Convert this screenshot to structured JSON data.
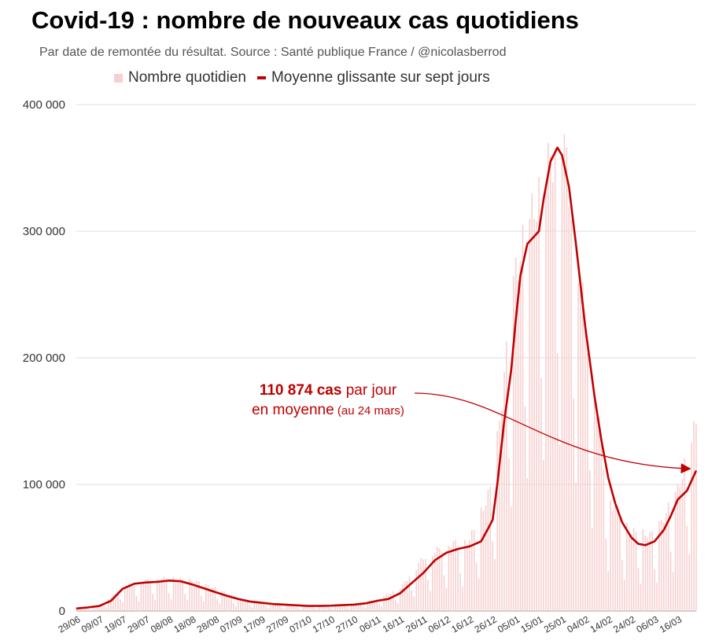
{
  "header": {
    "title": "Covid-19 : nombre de nouveaux cas quotidiens",
    "subtitle": "Par date de remontée du résultat. Source : Santé publique France / @nicolasberrod"
  },
  "legend": {
    "bars_label": "Nombre quotidien",
    "line_label": "Moyenne glissante sur sept jours"
  },
  "annotation": {
    "value": "110 874 cas",
    "line1_rest": " par jour",
    "line2": "en moyenne",
    "note": " (au 24 mars)"
  },
  "colors": {
    "bars": "#f7d0d0",
    "line": "#c00000",
    "grid": "#dddddd",
    "annotation": "#c00000"
  },
  "chart_data": {
    "type": "bar",
    "start_date": "2021-06-29",
    "end_date": "2022-03-24",
    "series": [
      {
        "name": "Nombre quotidien",
        "type": "bar",
        "points": [
          [
            "29/06",
            2000
          ],
          [
            "09/07",
            4000
          ],
          [
            "19/07",
            18000
          ],
          [
            "29/07",
            24000
          ],
          [
            "08/08",
            26000
          ],
          [
            "18/08",
            24000
          ],
          [
            "28/08",
            18000
          ],
          [
            "07/09",
            10000
          ],
          [
            "17/09",
            7000
          ],
          [
            "27/09",
            5000
          ],
          [
            "07/10",
            4000
          ],
          [
            "17/10",
            4500
          ],
          [
            "27/10",
            5500
          ],
          [
            "06/11",
            9000
          ],
          [
            "16/11",
            18000
          ],
          [
            "26/11",
            42000
          ],
          [
            "06/12",
            52000
          ],
          [
            "16/12",
            56000
          ],
          [
            "26/12",
            100000
          ],
          [
            "05/01",
            270000
          ],
          [
            "15/01",
            330000
          ],
          [
            "25/01",
            380000
          ],
          [
            "04/02",
            230000
          ],
          [
            "14/02",
            90000
          ],
          [
            "24/02",
            62000
          ],
          [
            "06/03",
            60000
          ],
          [
            "16/03",
            95000
          ],
          [
            "24/03",
            148000
          ]
        ]
      },
      {
        "name": "Moyenne glissante sur sept jours",
        "type": "line",
        "points": [
          [
            "29/06",
            2000
          ],
          [
            "04/07",
            2800
          ],
          [
            "09/07",
            4000
          ],
          [
            "14/07",
            8000
          ],
          [
            "19/07",
            17500
          ],
          [
            "24/07",
            21500
          ],
          [
            "29/07",
            22500
          ],
          [
            "03/08",
            23000
          ],
          [
            "08/08",
            24000
          ],
          [
            "13/08",
            23500
          ],
          [
            "18/08",
            21000
          ],
          [
            "23/08",
            18000
          ],
          [
            "28/08",
            15000
          ],
          [
            "02/09",
            12000
          ],
          [
            "07/09",
            9500
          ],
          [
            "12/09",
            7500
          ],
          [
            "17/09",
            6500
          ],
          [
            "22/09",
            5500
          ],
          [
            "27/09",
            5000
          ],
          [
            "02/10",
            4500
          ],
          [
            "07/10",
            4000
          ],
          [
            "12/10",
            4000
          ],
          [
            "17/10",
            4200
          ],
          [
            "22/10",
            4600
          ],
          [
            "27/10",
            5000
          ],
          [
            "01/11",
            6000
          ],
          [
            "06/11",
            8000
          ],
          [
            "11/11",
            9500
          ],
          [
            "16/11",
            14000
          ],
          [
            "21/11",
            22000
          ],
          [
            "26/11",
            30000
          ],
          [
            "01/12",
            40000
          ],
          [
            "06/12",
            46000
          ],
          [
            "11/12",
            49000
          ],
          [
            "16/12",
            51000
          ],
          [
            "21/12",
            55000
          ],
          [
            "24/12",
            65000
          ],
          [
            "26/12",
            72000
          ],
          [
            "28/12",
            100000
          ],
          [
            "31/12",
            150000
          ],
          [
            "03/01",
            190000
          ],
          [
            "05/01",
            230000
          ],
          [
            "07/01",
            265000
          ],
          [
            "10/01",
            290000
          ],
          [
            "13/01",
            296000
          ],
          [
            "15/01",
            300000
          ],
          [
            "17/01",
            325000
          ],
          [
            "20/01",
            355000
          ],
          [
            "23/01",
            366000
          ],
          [
            "25/01",
            360000
          ],
          [
            "28/01",
            335000
          ],
          [
            "31/01",
            290000
          ],
          [
            "04/02",
            225000
          ],
          [
            "08/02",
            170000
          ],
          [
            "11/02",
            135000
          ],
          [
            "14/02",
            105000
          ],
          [
            "17/02",
            85000
          ],
          [
            "20/02",
            70000
          ],
          [
            "24/02",
            58000
          ],
          [
            "27/02",
            53000
          ],
          [
            "02/03",
            52000
          ],
          [
            "06/03",
            55000
          ],
          [
            "10/03",
            64000
          ],
          [
            "13/03",
            75000
          ],
          [
            "16/03",
            88000
          ],
          [
            "20/03",
            95000
          ],
          [
            "24/03",
            110874
          ]
        ]
      }
    ],
    "x_tick_labels": [
      "29/06",
      "09/07",
      "19/07",
      "29/07",
      "08/08",
      "18/08",
      "28/08",
      "07/09",
      "17/09",
      "27/09",
      "07/10",
      "17/10",
      "27/10",
      "06/11",
      "16/11",
      "26/11",
      "06/12",
      "16/12",
      "26/12",
      "05/01",
      "15/01",
      "25/01",
      "04/02",
      "14/02",
      "24/02",
      "06/03",
      "16/03"
    ],
    "y_ticks": [
      0,
      100000,
      200000,
      300000,
      400000
    ],
    "y_tick_labels": [
      "0",
      "100 000",
      "200 000",
      "300 000",
      "400 000"
    ],
    "ylim": [
      0,
      400000
    ],
    "grid": true,
    "legend_position": "top"
  }
}
